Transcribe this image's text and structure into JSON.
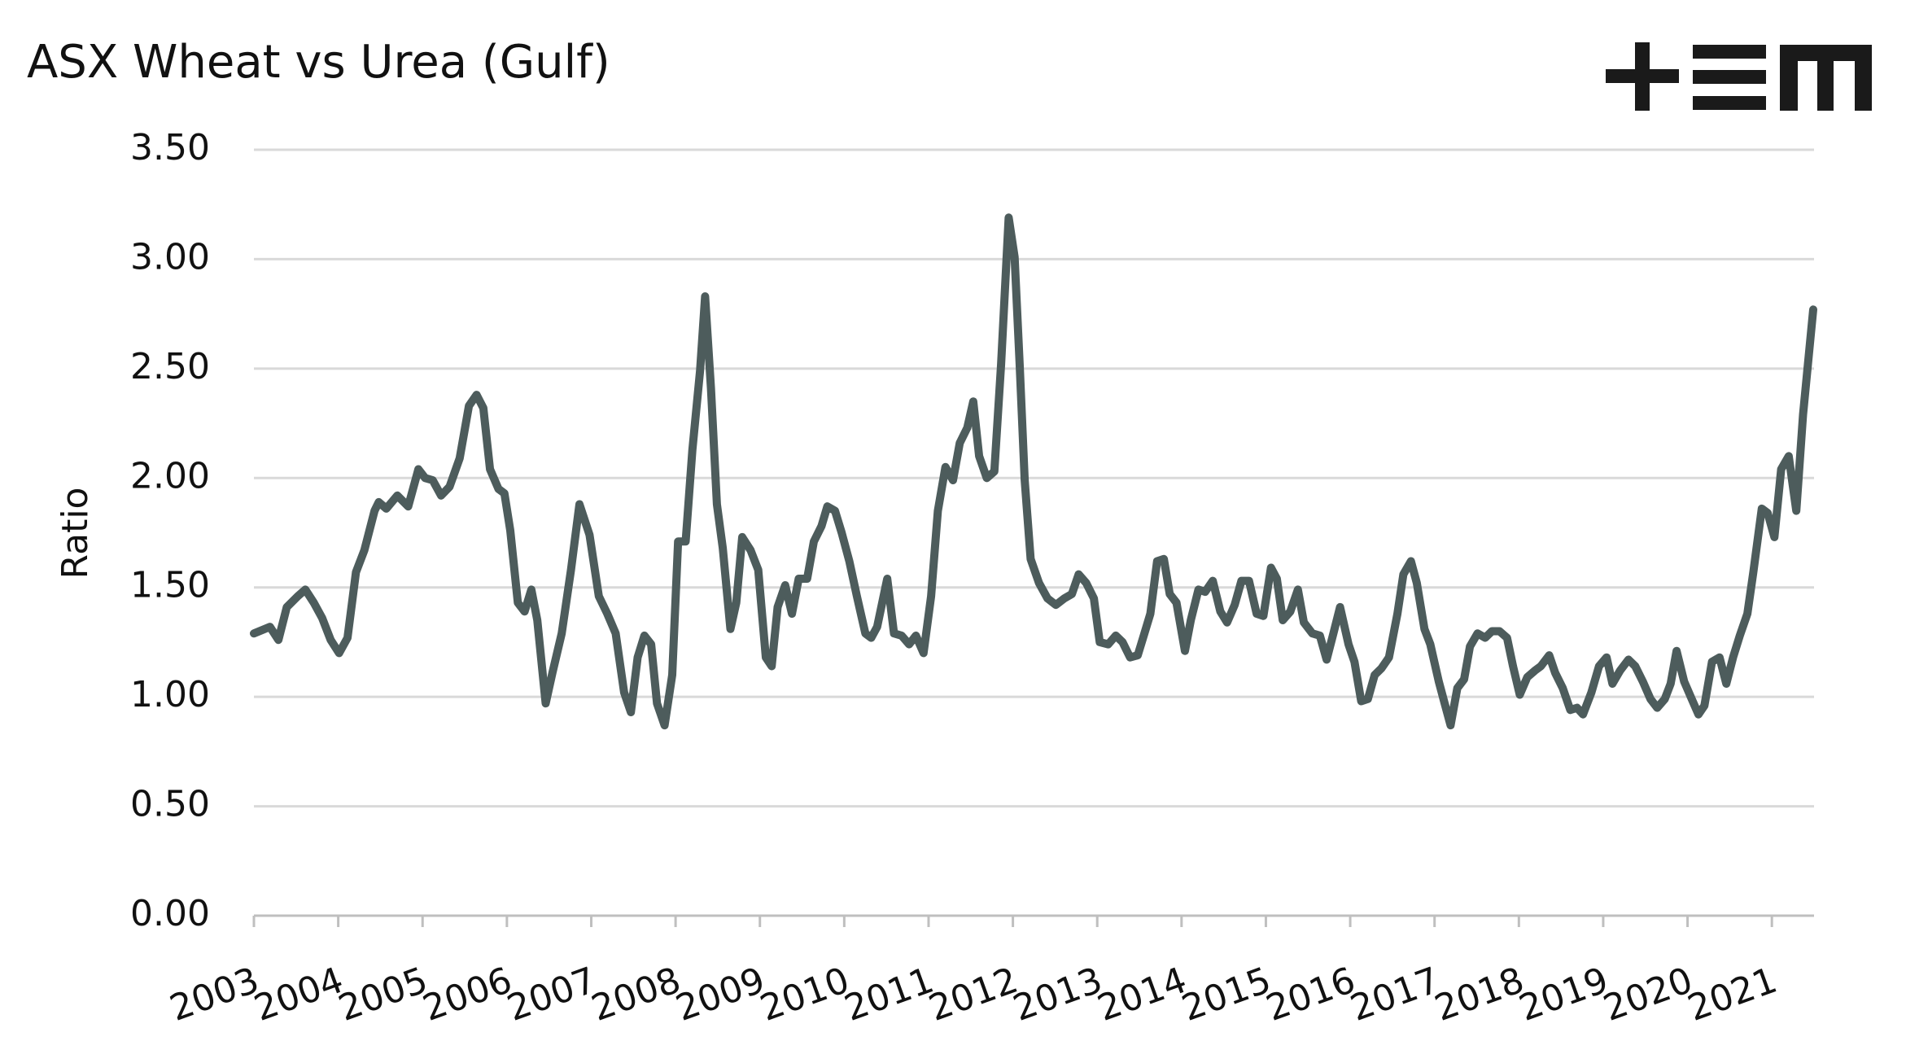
{
  "chart_data": {
    "type": "line",
    "title": "ASX Wheat vs Urea (Gulf)",
    "y_label": "Ratio",
    "color": "#4d5c5c",
    "grid": true,
    "xlim": [
      2003,
      2021.5
    ],
    "xticks": [
      2003,
      2004,
      2005,
      2006,
      2007,
      2008,
      2009,
      2010,
      2011,
      2012,
      2013,
      2014,
      2015,
      2016,
      2017,
      2018,
      2019,
      2020,
      2021
    ],
    "ylim": [
      0,
      3.5
    ],
    "yticks": [
      {
        "value": 0,
        "label": "0.00"
      },
      {
        "value": 0.5,
        "label": "0.50"
      },
      {
        "value": 1,
        "label": "1.00"
      },
      {
        "value": 1.5,
        "label": "1.50"
      },
      {
        "value": 2,
        "label": "2.00"
      },
      {
        "value": 2.5,
        "label": "2.50"
      },
      {
        "value": 3,
        "label": "3.00"
      },
      {
        "value": 3.5,
        "label": "3.50"
      }
    ],
    "x": [
      2003.0,
      2003.19,
      2003.29,
      2003.39,
      2003.52,
      2003.61,
      2003.71,
      2003.81,
      2003.91,
      2004.01,
      2004.11,
      2004.21,
      2004.31,
      2004.43,
      2004.48,
      2004.57,
      2004.7,
      2004.83,
      2004.95,
      2005.03,
      2005.12,
      2005.22,
      2005.32,
      2005.44,
      2005.55,
      2005.64,
      2005.72,
      2005.8,
      2005.9,
      2005.97,
      2006.04,
      2006.13,
      2006.21,
      2006.29,
      2006.36,
      2006.46,
      2006.54,
      2006.65,
      2006.76,
      2006.86,
      2006.98,
      2007.09,
      2007.19,
      2007.29,
      2007.39,
      2007.47,
      2007.55,
      2007.63,
      2007.71,
      2007.78,
      2007.87,
      2007.96,
      2008.03,
      2008.12,
      2008.2,
      2008.29,
      2008.35,
      2008.42,
      2008.49,
      2008.56,
      2008.65,
      2008.72,
      2008.79,
      2008.89,
      2008.98,
      2009.07,
      2009.14,
      2009.21,
      2009.3,
      2009.38,
      2009.46,
      2009.56,
      2009.64,
      2009.73,
      2009.8,
      2009.89,
      2009.97,
      2010.06,
      2010.15,
      2010.25,
      2010.32,
      2010.39,
      2010.51,
      2010.59,
      2010.68,
      2010.77,
      2010.85,
      2010.94,
      2011.03,
      2011.11,
      2011.2,
      2011.29,
      2011.37,
      2011.46,
      2011.53,
      2011.6,
      2011.69,
      2011.78,
      2011.86,
      2011.95,
      2012.02,
      2012.08,
      2012.14,
      2012.21,
      2012.31,
      2012.41,
      2012.51,
      2012.61,
      2012.7,
      2012.78,
      2012.87,
      2012.96,
      2013.03,
      2013.13,
      2013.22,
      2013.3,
      2013.39,
      2013.48,
      2013.56,
      2013.63,
      2013.71,
      2013.79,
      2013.86,
      2013.94,
      2014.04,
      2014.11,
      2014.2,
      2014.28,
      2014.37,
      2014.46,
      2014.54,
      2014.63,
      2014.71,
      2014.8,
      2014.89,
      2014.97,
      2015.06,
      2015.13,
      2015.2,
      2015.29,
      2015.38,
      2015.45,
      2015.55,
      2015.64,
      2015.72,
      2015.8,
      2015.88,
      2015.98,
      2016.05,
      2016.13,
      2016.21,
      2016.29,
      2016.37,
      2016.46,
      2016.56,
      2016.63,
      2016.72,
      2016.79,
      2016.88,
      2016.95,
      2017.05,
      2017.12,
      2017.19,
      2017.27,
      2017.35,
      2017.42,
      2017.51,
      2017.6,
      2017.68,
      2017.77,
      2017.86,
      2017.93,
      2018.01,
      2018.1,
      2018.19,
      2018.26,
      2018.36,
      2018.43,
      2018.52,
      2018.61,
      2018.69,
      2018.76,
      2018.86,
      2018.95,
      2019.04,
      2019.11,
      2019.2,
      2019.3,
      2019.38,
      2019.47,
      2019.56,
      2019.64,
      2019.73,
      2019.8,
      2019.87,
      2019.96,
      2020.05,
      2020.13,
      2020.2,
      2020.29,
      2020.38,
      2020.46,
      2020.54,
      2020.62,
      2020.71,
      2020.78,
      2020.88,
      2020.95,
      2021.03,
      2021.11,
      2021.2,
      2021.29,
      2021.37,
      2021.49
    ],
    "values": [
      1.29,
      1.32,
      1.26,
      1.41,
      1.46,
      1.49,
      1.43,
      1.36,
      1.26,
      1.2,
      1.27,
      1.57,
      1.67,
      1.85,
      1.89,
      1.86,
      1.92,
      1.87,
      2.04,
      2.0,
      1.99,
      1.92,
      1.96,
      2.09,
      2.33,
      2.38,
      2.32,
      2.04,
      1.95,
      1.93,
      1.76,
      1.43,
      1.39,
      1.49,
      1.35,
      0.97,
      1.11,
      1.29,
      1.58,
      1.88,
      1.74,
      1.46,
      1.38,
      1.29,
      1.02,
      0.93,
      1.18,
      1.28,
      1.24,
      0.97,
      0.87,
      1.1,
      1.71,
      1.71,
      2.13,
      2.49,
      2.83,
      2.41,
      1.88,
      1.68,
      1.31,
      1.43,
      1.73,
      1.67,
      1.58,
      1.18,
      1.14,
      1.41,
      1.51,
      1.38,
      1.54,
      1.54,
      1.71,
      1.78,
      1.87,
      1.85,
      1.75,
      1.62,
      1.46,
      1.29,
      1.27,
      1.32,
      1.54,
      1.29,
      1.28,
      1.24,
      1.28,
      1.2,
      1.46,
      1.85,
      2.05,
      1.99,
      2.16,
      2.23,
      2.35,
      2.1,
      2.0,
      2.03,
      2.52,
      3.19,
      3.01,
      2.52,
      1.99,
      1.63,
      1.52,
      1.45,
      1.42,
      1.45,
      1.47,
      1.56,
      1.52,
      1.45,
      1.25,
      1.24,
      1.28,
      1.25,
      1.18,
      1.19,
      1.29,
      1.38,
      1.62,
      1.63,
      1.47,
      1.43,
      1.21,
      1.35,
      1.49,
      1.48,
      1.53,
      1.39,
      1.34,
      1.42,
      1.53,
      1.53,
      1.38,
      1.37,
      1.59,
      1.54,
      1.35,
      1.39,
      1.49,
      1.34,
      1.29,
      1.28,
      1.17,
      1.29,
      1.41,
      1.24,
      1.16,
      0.98,
      0.99,
      1.1,
      1.13,
      1.18,
      1.38,
      1.56,
      1.62,
      1.52,
      1.31,
      1.24,
      1.07,
      0.97,
      0.87,
      1.04,
      1.08,
      1.23,
      1.29,
      1.27,
      1.3,
      1.3,
      1.27,
      1.14,
      1.01,
      1.09,
      1.12,
      1.14,
      1.19,
      1.11,
      1.04,
      0.94,
      0.95,
      0.92,
      1.02,
      1.14,
      1.18,
      1.06,
      1.12,
      1.17,
      1.14,
      1.07,
      0.99,
      0.95,
      0.99,
      1.06,
      1.21,
      1.07,
      0.99,
      0.92,
      0.96,
      1.16,
      1.18,
      1.06,
      1.18,
      1.28,
      1.38,
      1.57,
      1.86,
      1.84,
      1.73,
      2.04,
      2.1,
      1.85,
      2.29,
      2.77
    ]
  }
}
